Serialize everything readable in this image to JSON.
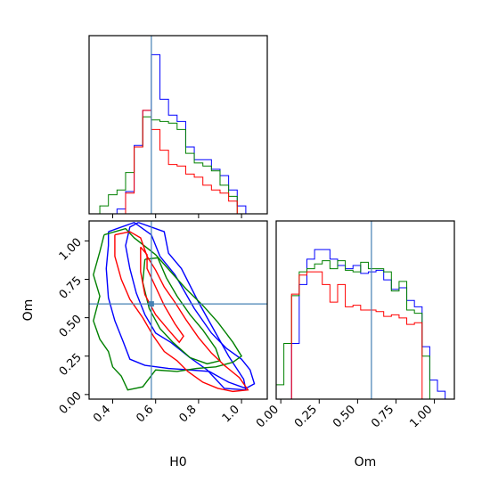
{
  "chart_data": {
    "type": "corner",
    "params": [
      "H0",
      "Om"
    ],
    "truth": {
      "H0": 0.58,
      "Om": 0.59
    },
    "truth_color": "#4682b4",
    "series": [
      {
        "color": "#0000ff"
      },
      {
        "color": "#008000"
      },
      {
        "color": "#ff0000"
      }
    ],
    "histograms": {
      "H0": {
        "bins": [
          0.3,
          0.34,
          0.38,
          0.42,
          0.46,
          0.5,
          0.54,
          0.58,
          0.62,
          0.66,
          0.7,
          0.74,
          0.78,
          0.82,
          0.86,
          0.9,
          0.94,
          0.98,
          1.02,
          1.06
        ],
        "counts": [
          [
            0.0,
            0.0,
            0.0,
            0.03,
            0.14,
            0.43,
            0.65,
            1.0,
            0.72,
            0.62,
            0.58,
            0.42,
            0.34,
            0.34,
            0.28,
            0.24,
            0.15,
            0.05,
            0.0
          ],
          [
            0.0,
            0.05,
            0.12,
            0.15,
            0.26,
            0.42,
            0.61,
            0.59,
            0.58,
            0.57,
            0.53,
            0.38,
            0.32,
            0.3,
            0.27,
            0.18,
            0.11,
            0.0,
            0.0
          ],
          [
            0.0,
            0.0,
            0.0,
            0.0,
            0.13,
            0.42,
            0.65,
            0.53,
            0.4,
            0.31,
            0.3,
            0.25,
            0.23,
            0.18,
            0.15,
            0.13,
            0.08,
            0.0,
            0.0
          ]
        ]
      },
      "Om": {
        "bins": [
          -0.03,
          0.02,
          0.07,
          0.12,
          0.17,
          0.22,
          0.27,
          0.32,
          0.37,
          0.42,
          0.47,
          0.52,
          0.57,
          0.62,
          0.67,
          0.72,
          0.77,
          0.82,
          0.87,
          0.92,
          0.97,
          1.02,
          1.07,
          1.12
        ],
        "counts": [
          [
            0.0,
            0.0,
            0.35,
            0.72,
            0.88,
            0.94,
            0.94,
            0.88,
            0.84,
            0.82,
            0.84,
            0.79,
            0.8,
            0.81,
            0.75,
            0.69,
            0.7,
            0.62,
            0.58,
            0.33,
            0.12,
            0.05,
            0.0
          ],
          [
            0.09,
            0.35,
            0.65,
            0.8,
            0.82,
            0.85,
            0.87,
            0.82,
            0.87,
            0.81,
            0.8,
            0.86,
            0.82,
            0.82,
            0.8,
            0.68,
            0.74,
            0.56,
            0.54,
            0.27,
            0.0,
            0.0,
            0.0
          ],
          [
            0.0,
            0.0,
            0.66,
            0.78,
            0.8,
            0.8,
            0.72,
            0.61,
            0.72,
            0.58,
            0.59,
            0.56,
            0.56,
            0.55,
            0.52,
            0.53,
            0.51,
            0.47,
            0.48,
            0.0,
            0.0,
            0.0,
            0.0
          ]
        ]
      }
    },
    "contours": [
      {
        "series": 0,
        "levels": [
          [
            [
              0.52,
              1.12
            ],
            [
              0.64,
              1.06
            ],
            [
              0.66,
              0.92
            ],
            [
              0.72,
              0.82
            ],
            [
              0.8,
              0.6
            ],
            [
              0.88,
              0.4
            ],
            [
              0.94,
              0.25
            ],
            [
              1.01,
              0.1
            ],
            [
              1.02,
              0.03
            ],
            [
              0.92,
              0.04
            ],
            [
              0.84,
              0.16
            ],
            [
              0.76,
              0.24
            ],
            [
              0.67,
              0.34
            ],
            [
              0.6,
              0.4
            ],
            [
              0.55,
              0.52
            ],
            [
              0.51,
              0.66
            ],
            [
              0.48,
              0.82
            ],
            [
              0.46,
              0.97
            ],
            [
              0.48,
              1.09
            ],
            [
              0.52,
              1.12
            ]
          ],
          [
            [
              0.38,
              1.06
            ],
            [
              0.5,
              1.12
            ],
            [
              0.58,
              1.04
            ],
            [
              0.62,
              0.9
            ],
            [
              0.69,
              0.78
            ],
            [
              0.78,
              0.56
            ],
            [
              0.86,
              0.4
            ],
            [
              0.93,
              0.3
            ],
            [
              1.0,
              0.23
            ],
            [
              1.04,
              0.16
            ],
            [
              1.06,
              0.07
            ],
            [
              1.02,
              0.04
            ],
            [
              0.94,
              0.08
            ],
            [
              0.85,
              0.15
            ],
            [
              0.76,
              0.16
            ],
            [
              0.66,
              0.17
            ],
            [
              0.55,
              0.19
            ],
            [
              0.48,
              0.23
            ],
            [
              0.45,
              0.34
            ],
            [
              0.41,
              0.48
            ],
            [
              0.38,
              0.63
            ],
            [
              0.37,
              0.82
            ],
            [
              0.38,
              0.97
            ],
            [
              0.38,
              1.06
            ]
          ]
        ]
      },
      {
        "series": 1,
        "levels": [
          [
            [
              0.55,
              0.88
            ],
            [
              0.61,
              0.89
            ],
            [
              0.65,
              0.76
            ],
            [
              0.7,
              0.64
            ],
            [
              0.76,
              0.52
            ],
            [
              0.82,
              0.42
            ],
            [
              0.88,
              0.3
            ],
            [
              0.9,
              0.22
            ],
            [
              0.84,
              0.2
            ],
            [
              0.76,
              0.24
            ],
            [
              0.68,
              0.34
            ],
            [
              0.62,
              0.43
            ],
            [
              0.57,
              0.56
            ],
            [
              0.54,
              0.73
            ],
            [
              0.55,
              0.88
            ]
          ],
          [
            [
              0.36,
              1.04
            ],
            [
              0.46,
              1.08
            ],
            [
              0.5,
              1.02
            ],
            [
              0.6,
              0.91
            ],
            [
              0.67,
              0.8
            ],
            [
              0.74,
              0.69
            ],
            [
              0.82,
              0.58
            ],
            [
              0.89,
              0.47
            ],
            [
              0.96,
              0.34
            ],
            [
              1.0,
              0.25
            ],
            [
              0.96,
              0.21
            ],
            [
              0.88,
              0.18
            ],
            [
              0.79,
              0.17
            ],
            [
              0.7,
              0.15
            ],
            [
              0.6,
              0.16
            ],
            [
              0.54,
              0.05
            ],
            [
              0.47,
              0.03
            ],
            [
              0.44,
              0.12
            ],
            [
              0.4,
              0.18
            ],
            [
              0.38,
              0.28
            ],
            [
              0.34,
              0.36
            ],
            [
              0.31,
              0.48
            ],
            [
              0.34,
              0.64
            ],
            [
              0.31,
              0.78
            ],
            [
              0.34,
              0.93
            ],
            [
              0.36,
              1.04
            ]
          ]
        ]
      },
      {
        "series": 2,
        "levels": [
          [
            [
              0.53,
              0.96
            ],
            [
              0.56,
              0.91
            ],
            [
              0.56,
              0.82
            ],
            [
              0.6,
              0.7
            ],
            [
              0.64,
              0.58
            ],
            [
              0.69,
              0.46
            ],
            [
              0.73,
              0.38
            ],
            [
              0.71,
              0.34
            ],
            [
              0.66,
              0.42
            ],
            [
              0.6,
              0.52
            ],
            [
              0.55,
              0.65
            ],
            [
              0.53,
              0.8
            ],
            [
              0.53,
              0.96
            ]
          ],
          [
            [
              0.41,
              1.04
            ],
            [
              0.48,
              1.06
            ],
            [
              0.53,
              1.02
            ],
            [
              0.56,
              0.9
            ],
            [
              0.6,
              0.81
            ],
            [
              0.64,
              0.7
            ],
            [
              0.69,
              0.6
            ],
            [
              0.74,
              0.49
            ],
            [
              0.8,
              0.37
            ],
            [
              0.86,
              0.27
            ],
            [
              0.92,
              0.19
            ],
            [
              0.99,
              0.11
            ],
            [
              1.03,
              0.03
            ],
            [
              0.96,
              0.02
            ],
            [
              0.89,
              0.04
            ],
            [
              0.82,
              0.08
            ],
            [
              0.75,
              0.15
            ],
            [
              0.7,
              0.22
            ],
            [
              0.64,
              0.28
            ],
            [
              0.59,
              0.38
            ],
            [
              0.54,
              0.5
            ],
            [
              0.48,
              0.62
            ],
            [
              0.44,
              0.75
            ],
            [
              0.41,
              0.9
            ],
            [
              0.41,
              1.04
            ]
          ]
        ]
      }
    ],
    "axes": {
      "H0": {
        "range": [
          0.29,
          1.12
        ],
        "ticks": [
          0.4,
          0.6,
          0.8,
          1.0
        ],
        "tick_labels": [
          "0.4",
          "0.6",
          "0.8",
          "1.0"
        ]
      },
      "Om": {
        "range": [
          -0.03,
          1.13
        ],
        "ticks": [
          0.0,
          0.25,
          0.5,
          0.75,
          1.0
        ],
        "tick_labels": [
          "0.00",
          "0.25",
          "0.50",
          "0.75",
          "1.00"
        ]
      },
      "hist_max": 1.12
    },
    "xlabels": {
      "h0_panel": "H0",
      "om_panel": "Om"
    },
    "ylabel": "Om"
  }
}
